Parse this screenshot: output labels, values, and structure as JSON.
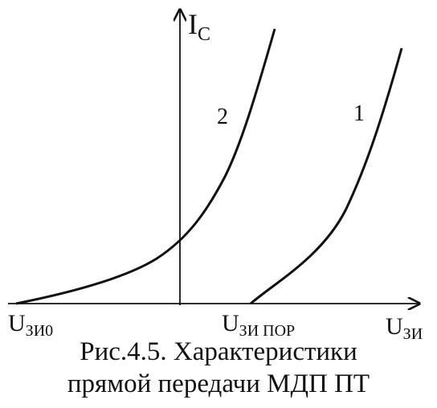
{
  "axes": {
    "y_label_main": "I",
    "y_label_sub": "C",
    "x_label_main": "U",
    "x_label_sub": "ЗИ",
    "x_mark_left_main": "U",
    "x_mark_left_sub": "ЗИ0",
    "x_mark_threshold_main": "U",
    "x_mark_threshold_sub": "ЗИ ПОР"
  },
  "curves": {
    "curve_2_label": "2",
    "curve_1_label": "1"
  },
  "caption": {
    "line1": "Рис.4.5. Характеристики",
    "line2": "прямой передачи МДП ПТ"
  }
}
